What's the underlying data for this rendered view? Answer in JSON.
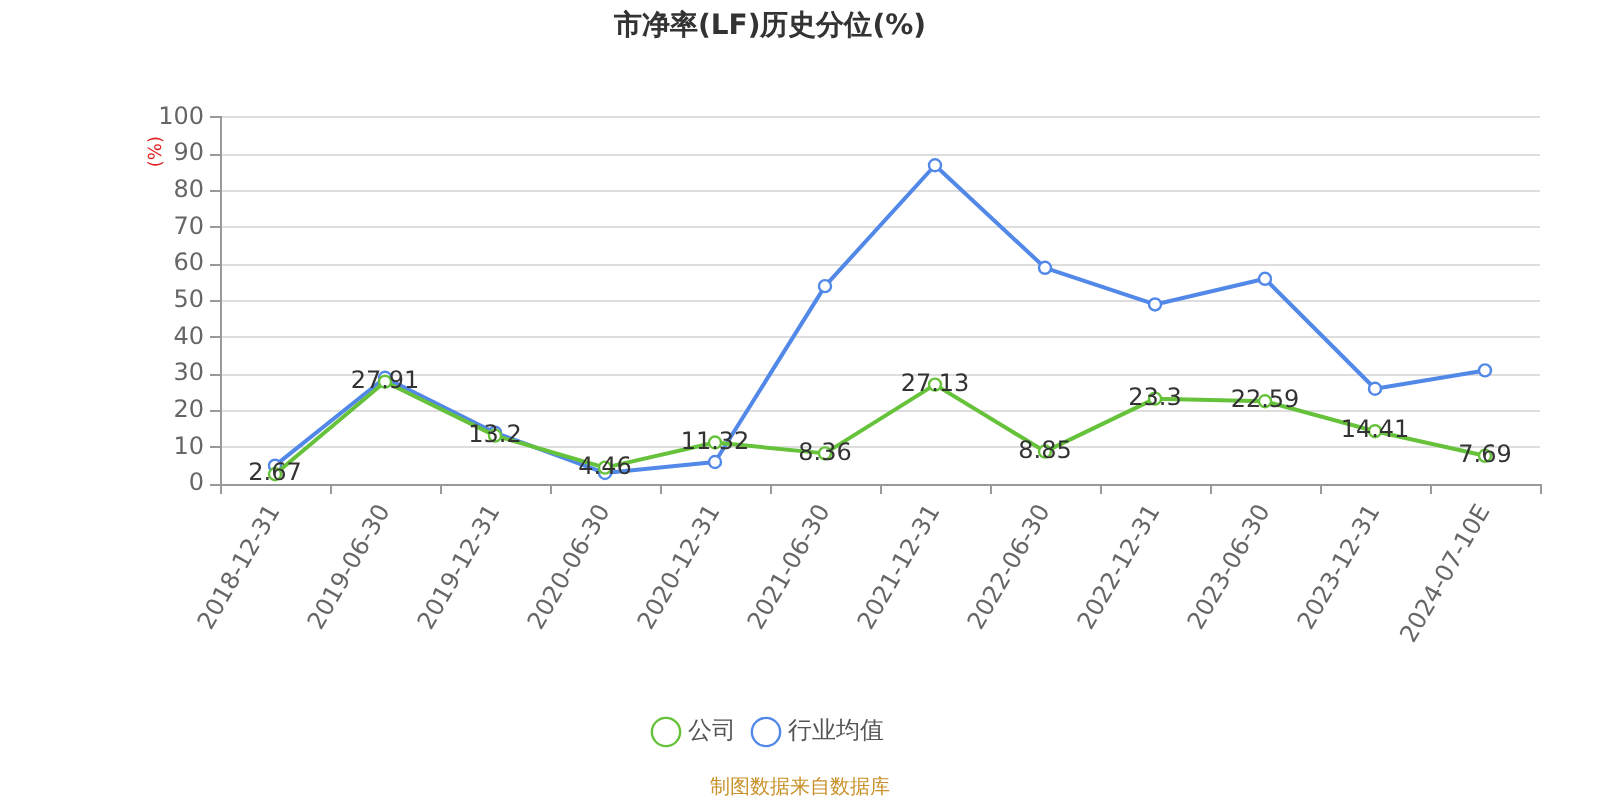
{
  "chart_data": {
    "type": "line",
    "title": "市净率(LF)历史分位(%)",
    "ylabel": "(%)",
    "annotations": [
      "制图数据来自数据库"
    ],
    "categories": [
      "2018-12-31",
      "2019-06-30",
      "2019-12-31",
      "2020-06-30",
      "2020-12-31",
      "2021-06-30",
      "2021-12-31",
      "2022-06-30",
      "2022-12-31",
      "2023-06-30",
      "2023-12-31",
      "2024-07-10E"
    ],
    "series": [
      {
        "name": "公司",
        "color": "#66c23a",
        "values": [
          2.67,
          27.91,
          13.2,
          4.46,
          11.32,
          8.36,
          27.13,
          8.85,
          23.3,
          22.59,
          14.41,
          7.69
        ],
        "value_labels": [
          "2.67",
          "27.91",
          "13.2",
          "4.46",
          "11.32",
          "8.36",
          "27.13",
          "8.85",
          "23.3",
          "22.59",
          "14.41",
          "7.69"
        ]
      },
      {
        "name": "行业均值",
        "color": "#5288e8",
        "values": [
          5,
          29,
          14,
          3,
          6,
          54,
          87,
          59,
          49,
          56,
          26,
          31
        ]
      }
    ],
    "ylim": [
      0,
      100
    ],
    "yticks": [
      0,
      10,
      20,
      30,
      40,
      50,
      60,
      70,
      80,
      90,
      100
    ],
    "grid": "y",
    "legend": "bottom",
    "marker": "circle"
  }
}
